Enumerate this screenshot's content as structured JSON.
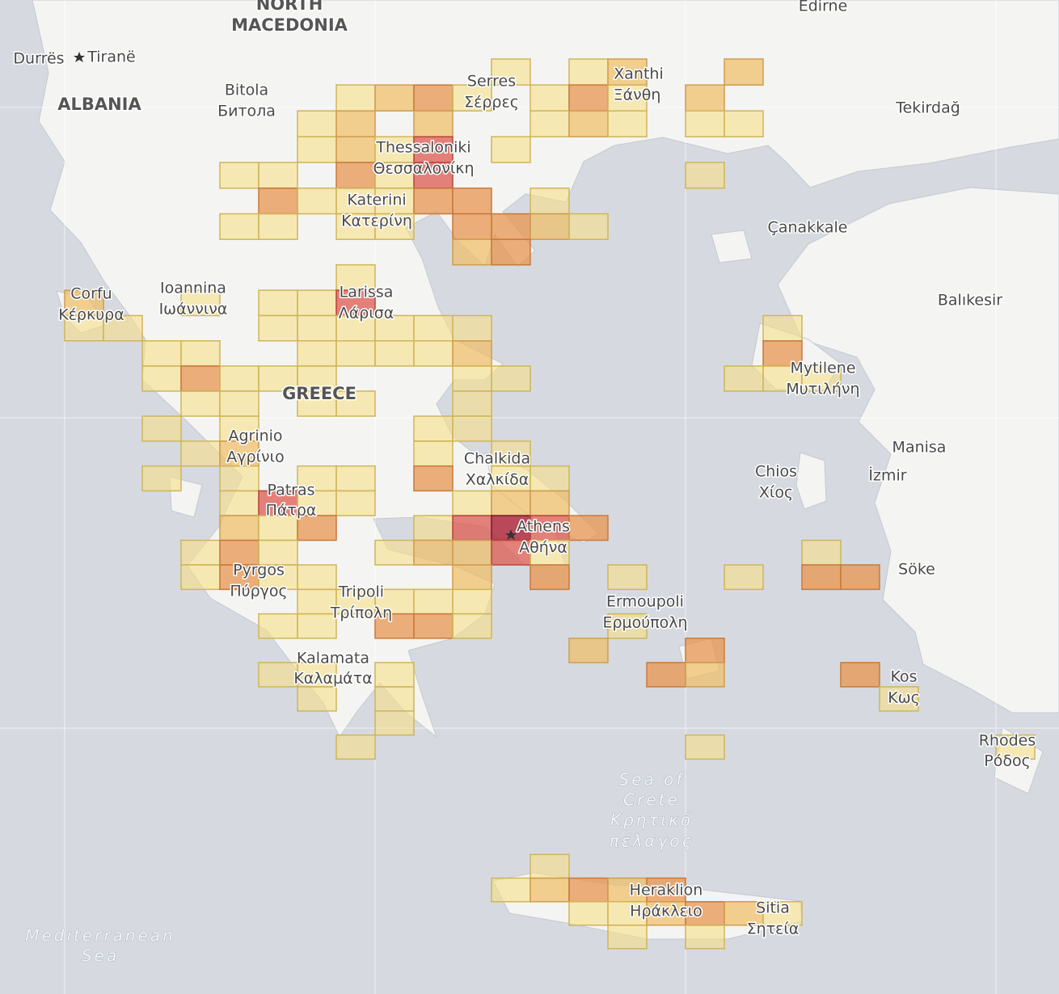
{
  "map": {
    "labels": [
      "NORTH",
      "MACEDONIA",
      "Edirne",
      "Durrës",
      "Tiranë",
      "ALBANIA",
      "Bitola",
      "Битола",
      "Serres",
      "Σέρρες",
      "Xanthi",
      "Ξάνθη",
      "Tekirdağ",
      "Thessaloniki",
      "Θεσσαλονίκη",
      "Katerini",
      "Κατερίνη",
      "Çanakkale",
      "Corfu",
      "Κέρκυρα",
      "Ioannina",
      "Ιωάννινα",
      "Larissa",
      "Λάρισα",
      "Balıkesir",
      "GREECE",
      "Mytilene",
      "Μυτιλήνη",
      "Agrinio",
      "Αγρίνιο",
      "Chalkida",
      "Χαλκίδα",
      "Manisa",
      "Chios",
      "Χίος",
      "İzmir",
      "Patras",
      "Πάτρα",
      "Athens",
      "Αθήνα",
      "Söke",
      "Pyrgos",
      "Πύργος",
      "Tripoli",
      "Τρίπολη",
      "Ermoupoli",
      "Ερμούπολη",
      "Kalamata",
      "Καλαμάτα",
      "Kos",
      "Κως",
      "Rhodes",
      "Ρόδος",
      "Sea of",
      "Crete",
      "Κρητικό",
      "πέλαγος",
      "Heraklion",
      "Ηράκλειο",
      "Sitia",
      "Σητεία",
      "Mediterranean",
      "Sea"
    ],
    "level_colors": [
      "rgba(247,223,135,0.6)",
      "rgba(240,188,100,0.7)",
      "rgba(232,150,80,0.75)",
      "rgba(222,90,80,0.75)",
      "rgba(170,30,50,0.8)"
    ],
    "cells": [
      [
        11,
        0,
        1
      ],
      [
        13,
        0,
        1
      ],
      [
        14,
        0,
        2
      ],
      [
        17,
        0,
        2
      ],
      [
        7,
        1,
        1
      ],
      [
        8,
        1,
        2
      ],
      [
        9,
        1,
        3
      ],
      [
        10,
        1,
        1
      ],
      [
        12,
        1,
        1
      ],
      [
        13,
        1,
        3
      ],
      [
        14,
        1,
        1
      ],
      [
        16,
        1,
        2
      ],
      [
        6,
        2,
        1
      ],
      [
        7,
        2,
        2
      ],
      [
        9,
        2,
        2
      ],
      [
        12,
        2,
        1
      ],
      [
        13,
        2,
        2
      ],
      [
        14,
        2,
        1
      ],
      [
        16,
        2,
        1
      ],
      [
        17,
        2,
        1
      ],
      [
        6,
        3,
        1
      ],
      [
        7,
        3,
        2
      ],
      [
        8,
        3,
        1
      ],
      [
        9,
        3,
        4
      ],
      [
        11,
        3,
        1
      ],
      [
        4,
        4,
        1
      ],
      [
        5,
        4,
        1
      ],
      [
        7,
        4,
        3
      ],
      [
        8,
        4,
        1
      ],
      [
        9,
        4,
        4
      ],
      [
        16,
        4,
        1
      ],
      [
        5,
        5,
        3
      ],
      [
        6,
        5,
        1
      ],
      [
        7,
        5,
        1
      ],
      [
        8,
        5,
        1
      ],
      [
        9,
        5,
        3
      ],
      [
        10,
        5,
        3
      ],
      [
        12,
        5,
        1
      ],
      [
        4,
        6,
        1
      ],
      [
        5,
        6,
        1
      ],
      [
        7,
        6,
        1
      ],
      [
        8,
        6,
        1
      ],
      [
        10,
        6,
        3
      ],
      [
        11,
        6,
        3
      ],
      [
        12,
        6,
        2
      ],
      [
        13,
        6,
        1
      ],
      [
        10,
        7,
        2
      ],
      [
        11,
        7,
        3
      ],
      [
        7,
        8,
        1
      ],
      [
        0,
        9,
        2
      ],
      [
        3,
        9,
        1
      ],
      [
        5,
        9,
        1
      ],
      [
        6,
        9,
        1
      ],
      [
        7,
        9,
        4
      ],
      [
        0,
        10,
        1
      ],
      [
        1,
        10,
        1
      ],
      [
        5,
        10,
        1
      ],
      [
        6,
        10,
        1
      ],
      [
        7,
        10,
        1
      ],
      [
        8,
        10,
        1
      ],
      [
        9,
        10,
        1
      ],
      [
        10,
        10,
        1
      ],
      [
        18,
        10,
        1
      ],
      [
        2,
        11,
        1
      ],
      [
        3,
        11,
        1
      ],
      [
        6,
        11,
        1
      ],
      [
        7,
        11,
        1
      ],
      [
        8,
        11,
        1
      ],
      [
        9,
        11,
        1
      ],
      [
        10,
        11,
        2
      ],
      [
        18,
        11,
        3
      ],
      [
        2,
        12,
        1
      ],
      [
        3,
        12,
        3
      ],
      [
        4,
        12,
        1
      ],
      [
        5,
        12,
        1
      ],
      [
        6,
        12,
        1
      ],
      [
        10,
        12,
        1
      ],
      [
        11,
        12,
        1
      ],
      [
        17,
        12,
        1
      ],
      [
        18,
        12,
        1
      ],
      [
        19,
        12,
        1
      ],
      [
        3,
        13,
        1
      ],
      [
        4,
        13,
        1
      ],
      [
        6,
        13,
        1
      ],
      [
        7,
        13,
        1
      ],
      [
        10,
        13,
        1
      ],
      [
        2,
        14,
        1
      ],
      [
        4,
        14,
        1
      ],
      [
        9,
        14,
        1
      ],
      [
        10,
        14,
        1
      ],
      [
        3,
        15,
        1
      ],
      [
        4,
        15,
        2
      ],
      [
        9,
        15,
        1
      ],
      [
        11,
        15,
        1
      ],
      [
        2,
        16,
        1
      ],
      [
        4,
        16,
        1
      ],
      [
        6,
        16,
        1
      ],
      [
        7,
        16,
        1
      ],
      [
        9,
        16,
        3
      ],
      [
        11,
        16,
        1
      ],
      [
        12,
        16,
        1
      ],
      [
        4,
        17,
        1
      ],
      [
        5,
        17,
        4
      ],
      [
        6,
        17,
        1
      ],
      [
        7,
        17,
        1
      ],
      [
        10,
        17,
        1
      ],
      [
        11,
        17,
        2
      ],
      [
        12,
        17,
        2
      ],
      [
        4,
        18,
        2
      ],
      [
        5,
        18,
        1
      ],
      [
        6,
        18,
        3
      ],
      [
        9,
        18,
        1
      ],
      [
        10,
        18,
        4
      ],
      [
        11,
        18,
        5
      ],
      [
        12,
        18,
        4
      ],
      [
        13,
        18,
        3
      ],
      [
        3,
        19,
        1
      ],
      [
        4,
        19,
        3
      ],
      [
        5,
        19,
        1
      ],
      [
        8,
        19,
        1
      ],
      [
        9,
        19,
        2
      ],
      [
        10,
        19,
        2
      ],
      [
        11,
        19,
        4
      ],
      [
        12,
        19,
        1
      ],
      [
        19,
        19,
        1
      ],
      [
        3,
        20,
        1
      ],
      [
        4,
        20,
        3
      ],
      [
        5,
        20,
        1
      ],
      [
        6,
        20,
        1
      ],
      [
        10,
        20,
        2
      ],
      [
        12,
        20,
        3
      ],
      [
        14,
        20,
        1
      ],
      [
        17,
        20,
        1
      ],
      [
        19,
        20,
        3
      ],
      [
        20,
        20,
        3
      ],
      [
        6,
        21,
        1
      ],
      [
        7,
        21,
        1
      ],
      [
        8,
        21,
        1
      ],
      [
        9,
        21,
        1
      ],
      [
        10,
        21,
        1
      ],
      [
        5,
        22,
        1
      ],
      [
        6,
        22,
        1
      ],
      [
        8,
        22,
        3
      ],
      [
        9,
        22,
        3
      ],
      [
        10,
        22,
        1
      ],
      [
        14,
        22,
        1
      ],
      [
        13,
        23,
        2
      ],
      [
        16,
        23,
        3
      ],
      [
        5,
        24,
        1
      ],
      [
        6,
        24,
        1
      ],
      [
        8,
        24,
        1
      ],
      [
        15,
        24,
        3
      ],
      [
        16,
        24,
        2
      ],
      [
        20,
        24,
        3
      ],
      [
        6,
        25,
        1
      ],
      [
        8,
        25,
        1
      ],
      [
        21,
        25,
        1
      ],
      [
        8,
        26,
        1
      ],
      [
        7,
        27,
        1
      ],
      [
        16,
        27,
        1
      ],
      [
        24,
        27,
        1
      ],
      [
        12,
        32,
        1
      ],
      [
        11,
        33,
        1
      ],
      [
        12,
        33,
        2
      ],
      [
        13,
        33,
        3
      ],
      [
        14,
        33,
        2
      ],
      [
        15,
        33,
        3
      ],
      [
        13,
        34,
        1
      ],
      [
        14,
        34,
        1
      ],
      [
        15,
        34,
        2
      ],
      [
        16,
        34,
        3
      ],
      [
        17,
        34,
        2
      ],
      [
        18,
        34,
        1
      ],
      [
        14,
        35,
        1
      ],
      [
        16,
        35,
        1
      ]
    ]
  }
}
